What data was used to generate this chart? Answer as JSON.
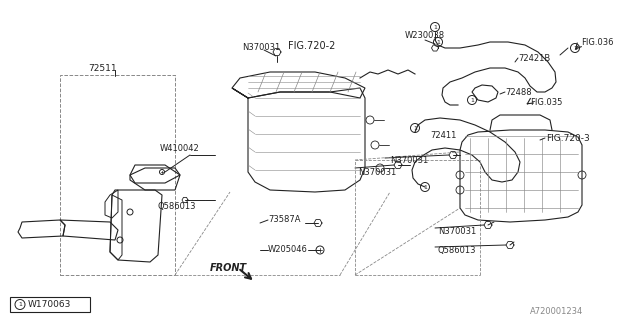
{
  "bg_color": "#ffffff",
  "fig_number": "A720001234",
  "lc": "#222222",
  "tc": "#222222",
  "gc": "#888888",
  "fs": 6.0,
  "labels": {
    "N370031_top": "N370031",
    "FIG720_2": "FIG.720-2",
    "W230038": "W230038",
    "FIG036": "FIG.036",
    "72421B": "72421B",
    "72488": "72488",
    "FIG035": "FIG.035",
    "72411": "72411",
    "N370031_mid": "N370031",
    "FIG720_3": "FIG.720-3",
    "73587A": "73587A",
    "W205046": "W205046",
    "N370031_bot": "N370031",
    "Q586013_bot": "Q586013",
    "FRONT": "FRONT",
    "W410042": "W410042",
    "Q586013_left": "Q586013",
    "72511": "72511",
    "W170063": "W170063"
  }
}
